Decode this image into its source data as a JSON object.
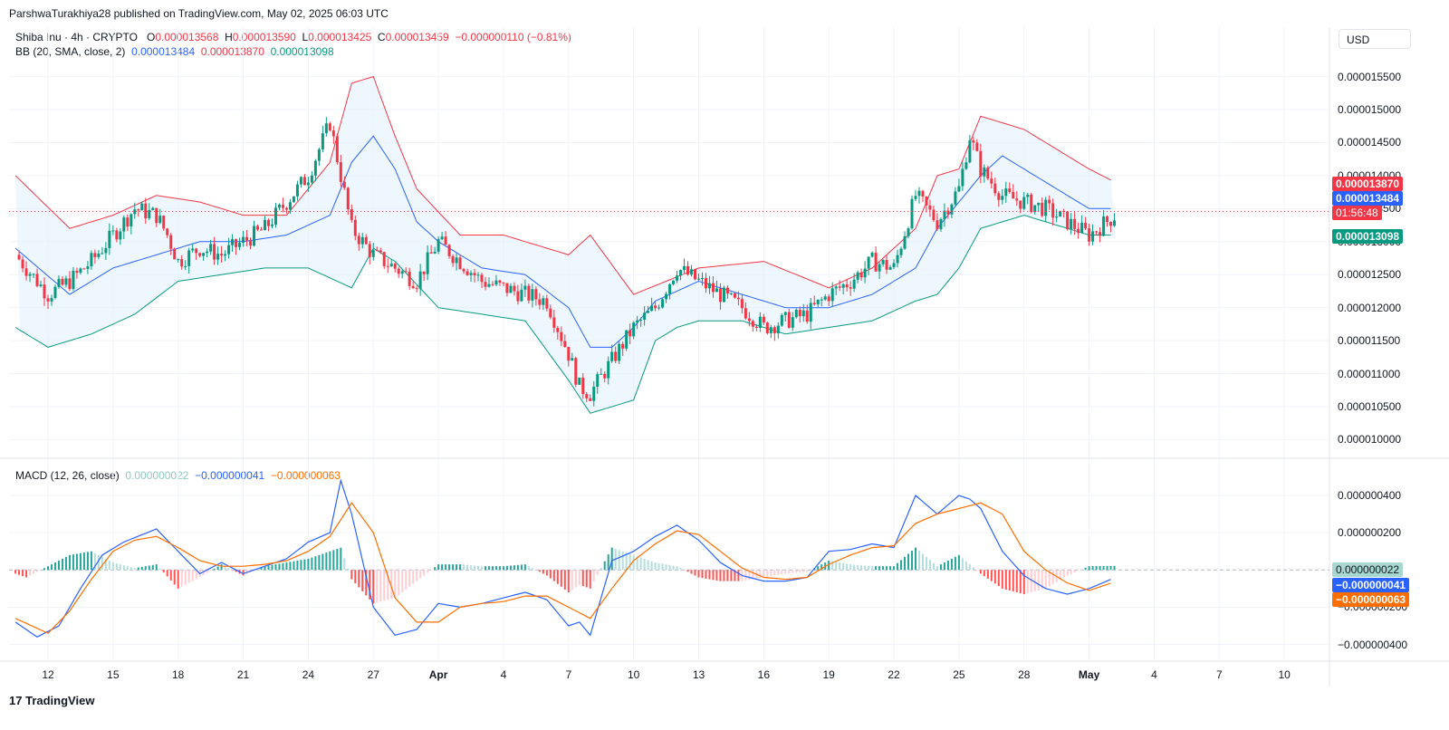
{
  "header": "ParshwaTurakhiya28 published on TradingView.com, May 02, 2025 06:03 UTC",
  "legend": {
    "symbol": "Shiba Inu · 4h · CRYPTO",
    "o_label": "O",
    "o": "0.000013568",
    "h_label": "H",
    "h": "0.000013590",
    "l_label": "L",
    "l": "0.000013425",
    "c_label": "C",
    "c": "0.000013459",
    "change": "−0.000000110 (−0.81%)",
    "bb_label": "BB (20, SMA, close, 2)",
    "bb_basis": "0.000013484",
    "bb_upper": "0.000013870",
    "bb_lower": "0.000013098",
    "macd_label": "MACD (12, 26, close)",
    "macd_hist": "0.000000022",
    "macd_line": "−0.000000041",
    "macd_signal": "−0.000000063"
  },
  "currency": "USD",
  "price_tags": {
    "upper": "0.000013870",
    "basis": "0.000013484",
    "countdown": "01:56:48",
    "lower": "0.000013098",
    "macd_hist": "0.000000022",
    "macd_line": "−0.000000041",
    "macd_signal": "−0.000000063"
  },
  "colors": {
    "up": "#089981",
    "down": "#f23645",
    "basis": "#2962ff",
    "upper": "#f23645",
    "lower": "#089981",
    "macd": "#2962ff",
    "signal": "#ff6d00",
    "band_fill": "#e3f2fd"
  },
  "brand": "TradingView",
  "chart_data": [
    {
      "type": "candlestick",
      "title": "Shiba Inu · 4h · CRYPTO",
      "ylim": [
        9.8e-06,
        1.57e-05
      ],
      "y_ticks": [
        "0.000015500",
        "0.000015000",
        "0.000014500",
        "0.000014000",
        "0.000013500",
        "0.000013000",
        "0.000012500",
        "0.000012000",
        "0.000011500",
        "0.000011000",
        "0.000010500",
        "0.000010000"
      ],
      "y_tick_values": [
        1.55e-05,
        1.5e-05,
        1.45e-05,
        1.4e-05,
        1.35e-05,
        1.3e-05,
        1.25e-05,
        1.2e-05,
        1.15e-05,
        1.1e-05,
        1.05e-05,
        1e-05
      ],
      "x_ticks": [
        "12",
        "15",
        "18",
        "21",
        "24",
        "27",
        "Apr",
        "4",
        "7",
        "10",
        "13",
        "16",
        "19",
        "22",
        "25",
        "28",
        "May",
        "4",
        "7",
        "10"
      ],
      "x_tick_days": [
        0,
        3,
        6,
        9,
        12,
        15,
        18,
        21,
        24,
        27,
        30,
        33,
        36,
        39,
        42,
        45,
        48,
        51,
        54,
        57
      ],
      "close_series_days": [
        -1.5,
        0,
        1,
        2,
        3,
        4,
        5,
        5.5,
        6,
        7,
        8,
        9,
        10,
        11,
        12,
        13,
        14,
        15,
        16,
        17,
        18,
        19,
        20,
        21,
        22,
        23,
        24,
        24.5,
        25,
        26,
        27,
        28,
        29,
        30,
        31,
        32,
        33,
        34,
        35,
        36,
        37,
        38,
        39,
        40,
        41,
        42,
        42.5,
        43,
        44,
        45,
        46,
        47,
        48,
        49.2
      ],
      "close_series": [
        1.28e-05,
        1.22e-05,
        1.24e-05,
        1.27e-05,
        1.31e-05,
        1.35e-05,
        1.34e-05,
        1.31e-05,
        1.27e-05,
        1.29e-05,
        1.28e-05,
        1.3e-05,
        1.32e-05,
        1.36e-05,
        1.4e-05,
        1.48e-05,
        1.32e-05,
        1.28e-05,
        1.26e-05,
        1.24e-05,
        1.3e-05,
        1.27e-05,
        1.24e-05,
        1.23e-05,
        1.22e-05,
        1.21e-05,
        1.13e-05,
        1.08e-05,
        1.07e-05,
        1.12e-05,
        1.17e-05,
        1.2e-05,
        1.26e-05,
        1.24e-05,
        1.22e-05,
        1.2e-05,
        1.17e-05,
        1.18e-05,
        1.19e-05,
        1.22e-05,
        1.24e-05,
        1.27e-05,
        1.26e-05,
        1.37e-05,
        1.33e-05,
        1.38e-05,
        1.46e-05,
        1.41e-05,
        1.37e-05,
        1.36e-05,
        1.35e-05,
        1.33e-05,
        1.31e-05,
        1.34e-05
      ],
      "bb_upper_days": [
        -1.5,
        1,
        3,
        5,
        7,
        9,
        11,
        13,
        14,
        15,
        16,
        17,
        19,
        21,
        24,
        25,
        27,
        30,
        33,
        36,
        38,
        40,
        41,
        42,
        43,
        45,
        46,
        48,
        49.2
      ],
      "bb_upper": [
        1.4e-05,
        1.32e-05,
        1.34e-05,
        1.37e-05,
        1.36e-05,
        1.34e-05,
        1.34e-05,
        1.42e-05,
        1.54e-05,
        1.55e-05,
        1.46e-05,
        1.38e-05,
        1.31e-05,
        1.31e-05,
        1.28e-05,
        1.31e-05,
        1.22e-05,
        1.26e-05,
        1.27e-05,
        1.23e-05,
        1.26e-05,
        1.32e-05,
        1.4e-05,
        1.41e-05,
        1.49e-05,
        1.47e-05,
        1.45e-05,
        1.41e-05,
        1.39e-05
      ],
      "bb_lower_days": [
        -1.5,
        0,
        2,
        4,
        6,
        8,
        10,
        12,
        14,
        15,
        16,
        18,
        20,
        22,
        24,
        25,
        26,
        27,
        28,
        29,
        30,
        32,
        34,
        36,
        38,
        40,
        41,
        42,
        43,
        44,
        45,
        47,
        48,
        49.2
      ],
      "bb_lower": [
        1.17e-05,
        1.14e-05,
        1.16e-05,
        1.19e-05,
        1.24e-05,
        1.25e-05,
        1.26e-05,
        1.26e-05,
        1.23e-05,
        1.29e-05,
        1.27e-05,
        1.2e-05,
        1.19e-05,
        1.18e-05,
        1.09e-05,
        1.04e-05,
        1.05e-05,
        1.06e-05,
        1.15e-05,
        1.17e-05,
        1.18e-05,
        1.18e-05,
        1.16e-05,
        1.17e-05,
        1.18e-05,
        1.21e-05,
        1.22e-05,
        1.26e-05,
        1.32e-05,
        1.33e-05,
        1.34e-05,
        1.32e-05,
        1.31e-05,
        1.31e-05
      ],
      "bb_basis_days": [
        -1.5,
        1,
        3,
        5,
        7,
        9,
        11,
        13,
        14,
        15,
        16,
        17,
        18,
        20,
        22,
        24,
        25,
        26,
        27,
        28,
        30,
        32,
        34,
        36,
        38,
        40,
        41,
        42,
        43,
        44,
        45,
        46,
        47,
        48,
        49.2
      ],
      "bb_basis": [
        1.29e-05,
        1.22e-05,
        1.26e-05,
        1.28e-05,
        1.3e-05,
        1.3e-05,
        1.31e-05,
        1.34e-05,
        1.42e-05,
        1.46e-05,
        1.41e-05,
        1.33e-05,
        1.3e-05,
        1.26e-05,
        1.25e-05,
        1.2e-05,
        1.14e-05,
        1.14e-05,
        1.17e-05,
        1.21e-05,
        1.24e-05,
        1.22e-05,
        1.2e-05,
        1.2e-05,
        1.22e-05,
        1.26e-05,
        1.32e-05,
        1.36e-05,
        1.4e-05,
        1.43e-05,
        1.41e-05,
        1.39e-05,
        1.37e-05,
        1.35e-05,
        1.35e-05
      ]
    },
    {
      "type": "line",
      "title": "MACD (12, 26, close)",
      "ylim": [
        -4.8e-07,
        5.8e-07
      ],
      "y_ticks": [
        "0.000000400",
        "0.000000200",
        "−0.000000200",
        "−0.000000400"
      ],
      "y_tick_values": [
        4e-07,
        2e-07,
        -2e-07,
        -4e-07
      ],
      "series": [
        {
          "name": "MACD",
          "days": [
            -1.5,
            -0.5,
            0.5,
            1.5,
            2.5,
            3.5,
            5,
            6,
            7,
            8,
            9,
            10,
            11,
            12,
            13,
            13.5,
            14,
            15,
            16,
            17,
            18,
            19,
            20,
            21,
            22,
            23,
            24,
            24.5,
            25,
            26,
            27,
            28,
            29,
            30,
            31,
            32,
            33,
            34,
            35,
            36,
            37,
            38,
            39,
            40,
            41,
            42,
            42.5,
            43,
            44,
            45,
            46,
            47,
            48,
            49.2
          ],
          "values": [
            -2.8e-07,
            -3.6e-07,
            -3e-07,
            -1e-07,
            8e-08,
            1.5e-07,
            2.2e-07,
            1e-07,
            -2e-08,
            4e-08,
            -2e-08,
            2e-08,
            6e-08,
            1.5e-07,
            2e-07,
            4.8e-07,
            3e-07,
            -2e-07,
            -3.5e-07,
            -3.2e-07,
            -1.8e-07,
            -2e-07,
            -1.8e-07,
            -1.5e-07,
            -1.2e-07,
            -1.6e-07,
            -3e-07,
            -2.8e-07,
            -3.5e-07,
            5e-08,
            1e-07,
            1.8e-07,
            2.4e-07,
            1.6e-07,
            4e-08,
            -3e-08,
            -6e-08,
            -6e-08,
            -4e-08,
            1e-07,
            1.1e-07,
            1.4e-07,
            1.2e-07,
            4e-07,
            3e-07,
            4e-07,
            3.8e-07,
            3.3e-07,
            1e-07,
            -3e-08,
            -1e-07,
            -1.3e-07,
            -1e-07,
            -4.1e-08
          ]
        },
        {
          "name": "Signal",
          "days": [
            -1.5,
            0,
            1,
            2,
            3,
            4,
            5,
            6,
            7,
            8,
            9,
            10,
            11,
            12,
            13,
            14,
            15,
            16,
            17,
            18,
            19,
            20,
            21,
            22,
            23,
            24,
            25,
            26,
            27,
            28,
            29,
            30,
            31,
            32,
            33,
            34,
            35,
            36,
            37,
            38,
            39,
            40,
            41,
            42,
            43,
            44,
            45,
            46,
            47,
            48,
            49.2
          ],
          "values": [
            -2.6e-07,
            -3.4e-07,
            -2.2e-07,
            -5e-08,
            1e-07,
            1.6e-07,
            1.8e-07,
            1.2e-07,
            5e-08,
            2e-08,
            2e-08,
            3e-08,
            5e-08,
            1e-07,
            1.8e-07,
            3.6e-07,
            2e-07,
            -1.5e-07,
            -2.8e-07,
            -2.8e-07,
            -2e-07,
            -1.8e-07,
            -1.7e-07,
            -1.4e-07,
            -1.4e-07,
            -2e-07,
            -2.6e-07,
            -1e-07,
            5e-08,
            1.4e-07,
            2.1e-07,
            1.9e-07,
            1e-07,
            1e-08,
            -4e-08,
            -5e-08,
            -4e-08,
            3e-08,
            8e-08,
            1.2e-07,
            1.3e-07,
            2.5e-07,
            3e-07,
            3.3e-07,
            3.6e-07,
            3e-07,
            1e-07,
            0,
            -7e-08,
            -1.1e-07,
            -6.3e-08
          ]
        },
        {
          "name": "Histogram",
          "type": "bar",
          "days": [
            -1.5,
            -1,
            0,
            1,
            2,
            3,
            4,
            5,
            6,
            7,
            8,
            9,
            10,
            11,
            12,
            13,
            13.5,
            14,
            15,
            16,
            17,
            18,
            19,
            20,
            21,
            22,
            23,
            24,
            24.5,
            25,
            26,
            27,
            28,
            29,
            30,
            31,
            32,
            33,
            34,
            35,
            36,
            37,
            38,
            39,
            40,
            41,
            42,
            43,
            44,
            45,
            46,
            47,
            48,
            49.2
          ],
          "values": [
            -2e-08,
            -4e-08,
            2e-08,
            8e-08,
            1e-07,
            4e-08,
            1e-08,
            3e-08,
            -1e-07,
            -4e-08,
            3e-08,
            -3e-08,
            2e-08,
            4e-08,
            6e-08,
            1e-07,
            1.2e-07,
            -5e-08,
            -1.8e-07,
            -1.5e-07,
            -6e-08,
            3e-08,
            3e-08,
            2e-08,
            2e-08,
            3e-08,
            -3e-08,
            -1.2e-07,
            -8e-08,
            -1e-07,
            1.2e-07,
            8e-08,
            4e-08,
            2e-08,
            -4e-08,
            -6e-08,
            -6e-08,
            -4e-08,
            -2e-08,
            -1e-08,
            5e-08,
            3e-08,
            2e-08,
            2e-08,
            1.2e-07,
            2e-08,
            8e-08,
            -2e-08,
            -1e-07,
            -1.3e-07,
            -1e-07,
            -3e-08,
            2e-08,
            2.2e-08
          ]
        }
      ]
    }
  ]
}
